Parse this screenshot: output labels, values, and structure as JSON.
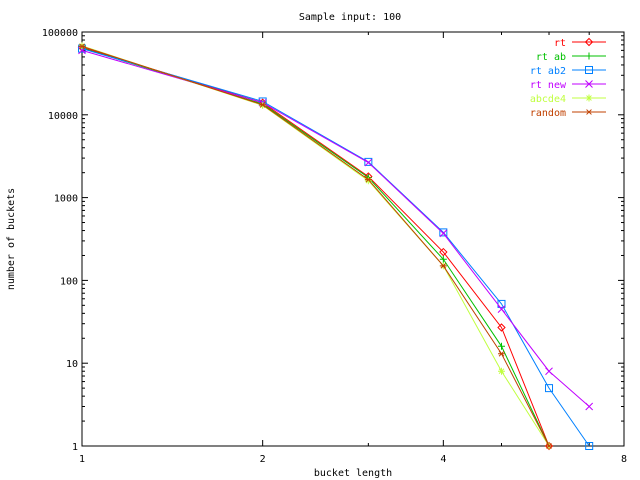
{
  "chart_data": {
    "type": "line",
    "title": "Sample input: 100",
    "xlabel": "bucket length",
    "ylabel": "number of buckets",
    "xscale": "log2",
    "yscale": "log10",
    "xlim": [
      1,
      8
    ],
    "ylim": [
      1,
      100000
    ],
    "xticks": [
      1,
      2,
      4,
      8
    ],
    "xtick_labels": [
      "1",
      "2",
      "4",
      "8"
    ],
    "yticks": [
      1,
      10,
      100,
      1000,
      10000,
      100000
    ],
    "ytick_labels": [
      "1",
      "10",
      "100",
      "1000",
      "10000",
      "100000"
    ],
    "grid": false,
    "legend_position": "top-right",
    "series": [
      {
        "name": "rt",
        "color": "#ff0000",
        "marker": "diamond",
        "points": [
          [
            1,
            65000
          ],
          [
            2,
            14000
          ],
          [
            3,
            1800
          ],
          [
            4,
            220
          ],
          [
            5,
            27
          ],
          [
            6,
            1
          ]
        ]
      },
      {
        "name": "rt ab",
        "color": "#00c000",
        "marker": "plus",
        "points": [
          [
            1,
            64000
          ],
          [
            2,
            13500
          ],
          [
            3,
            1750
          ],
          [
            4,
            180
          ],
          [
            5,
            16
          ],
          [
            6,
            1
          ]
        ]
      },
      {
        "name": "rt ab2",
        "color": "#0080ff",
        "marker": "square",
        "points": [
          [
            1,
            63000
          ],
          [
            2,
            14500
          ],
          [
            3,
            2700
          ],
          [
            4,
            380
          ],
          [
            5,
            52
          ],
          [
            6,
            5
          ],
          [
            7,
            1
          ]
        ]
      },
      {
        "name": "rt new",
        "color": "#c000ff",
        "marker": "x",
        "points": [
          [
            1,
            60000
          ],
          [
            2,
            14000
          ],
          [
            3,
            2650
          ],
          [
            4,
            370
          ],
          [
            5,
            45
          ],
          [
            6,
            8
          ],
          [
            7,
            3
          ]
        ]
      },
      {
        "name": "abcde4",
        "color": "#c0ff40",
        "marker": "star",
        "points": [
          [
            1,
            68000
          ],
          [
            2,
            13000
          ],
          [
            3,
            1600
          ],
          [
            4,
            150
          ],
          [
            5,
            8
          ],
          [
            6,
            1
          ]
        ]
      },
      {
        "name": "random",
        "color": "#c04000",
        "marker": "asterisk",
        "points": [
          [
            1,
            67000
          ],
          [
            2,
            13200
          ],
          [
            3,
            1650
          ],
          [
            4,
            150
          ],
          [
            5,
            13
          ],
          [
            6,
            1
          ]
        ]
      }
    ]
  }
}
